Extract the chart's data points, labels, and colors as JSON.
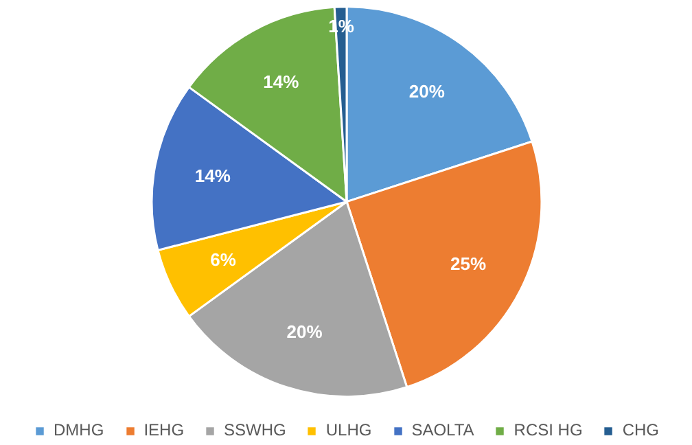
{
  "chart_data": {
    "type": "pie",
    "categories": [
      "DMHG",
      "IEHG",
      "SSWHG",
      "ULHG",
      "SAOLTA",
      "RCSI HG",
      "CHG"
    ],
    "values": [
      20,
      25,
      20,
      6,
      14,
      14,
      1
    ],
    "colors": [
      "#5b9bd5",
      "#ed7d31",
      "#a5a5a5",
      "#ffc000",
      "#4472c4",
      "#70ad47",
      "#255e91"
    ],
    "value_labels": [
      "20%",
      "25%",
      "20%",
      "6%",
      "14%",
      "14%",
      "1%"
    ],
    "legend": "bottom"
  }
}
